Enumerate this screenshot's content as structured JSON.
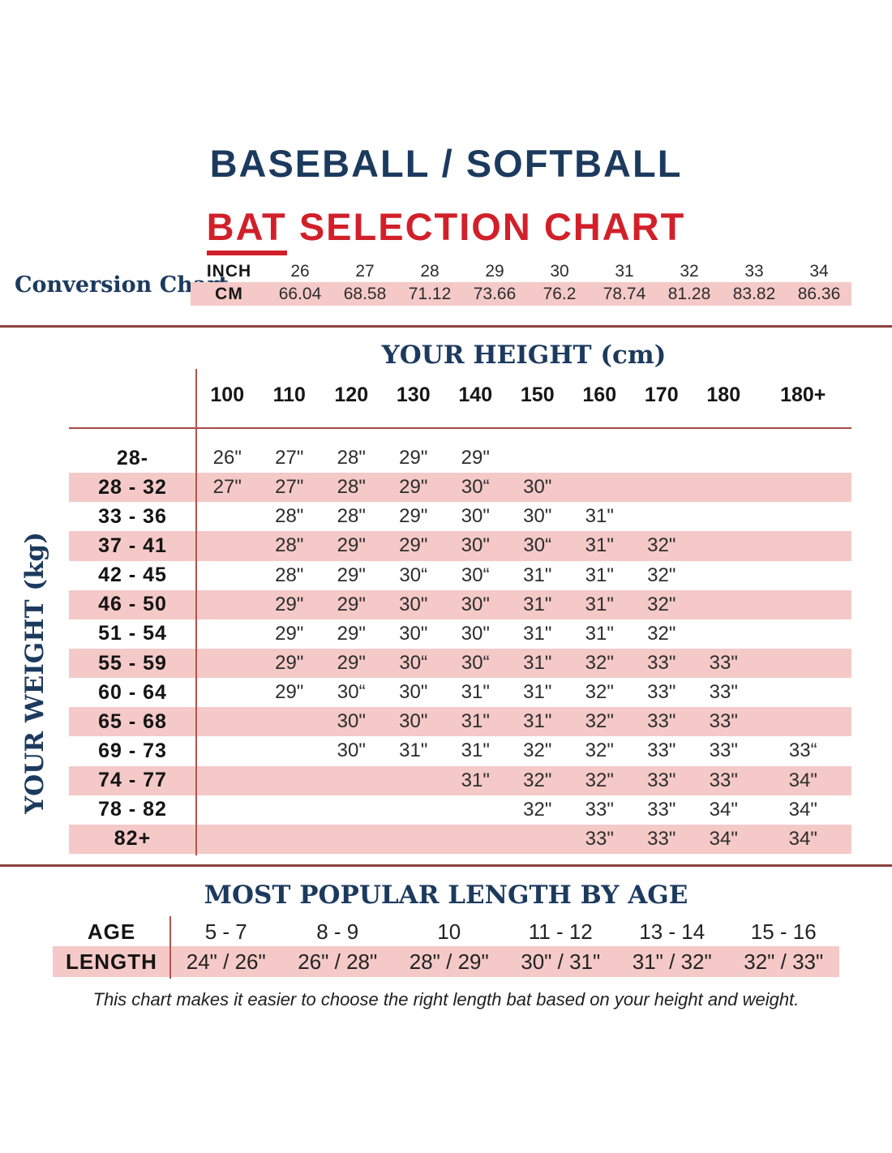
{
  "page": {
    "title_line1": "BASEBALL / SOFTBALL",
    "title_line2_word": "BAT",
    "title_line2_rest": " SELECTION CHART",
    "footer_note": "This chart makes it easier to choose the right length bat based on your height and weight."
  },
  "colors": {
    "navy": "#1c3a5e",
    "red": "#d1202a",
    "pink": "#f4c9c7",
    "rule_red": "#b25350",
    "divider_maroon": "#8e4040"
  },
  "conversion_chart": {
    "label": "Conversion Chart",
    "inch_label": "INCH",
    "cm_label": "CM",
    "inches": [
      "26",
      "27",
      "28",
      "29",
      "30",
      "31",
      "32",
      "33",
      "34"
    ],
    "cms": [
      "66.04",
      "68.58",
      "71.12",
      "73.66",
      "76.2",
      "78.74",
      "81.28",
      "83.82",
      "86.36"
    ]
  },
  "main_table": {
    "col_header_title": "YOUR HEIGHT (cm)",
    "row_header_title": "YOUR WEIGHT (kg)",
    "height_columns": [
      "100",
      "110",
      "120",
      "130",
      "140",
      "150",
      "160",
      "170",
      "180",
      "180+"
    ],
    "rows": [
      {
        "label": "28-",
        "cells": [
          "26\"",
          "27\"",
          "28\"",
          "29\"",
          "29\"",
          "",
          "",
          "",
          "",
          ""
        ]
      },
      {
        "label": "28 - 32",
        "cells": [
          "27\"",
          "27\"",
          "28\"",
          "29\"",
          "30“",
          "30\"",
          "",
          "",
          "",
          ""
        ]
      },
      {
        "label": "33 - 36",
        "cells": [
          "",
          "28\"",
          "28\"",
          "29\"",
          "30\"",
          "30\"",
          "31\"",
          "",
          "",
          ""
        ]
      },
      {
        "label": "37 - 41",
        "cells": [
          "",
          "28\"",
          "29\"",
          "29\"",
          "30\"",
          "30“",
          "31\"",
          "32\"",
          "",
          ""
        ]
      },
      {
        "label": "42 - 45",
        "cells": [
          "",
          "28\"",
          "29\"",
          "30“",
          "30“",
          "31\"",
          "31\"",
          "32\"",
          "",
          ""
        ]
      },
      {
        "label": "46 - 50",
        "cells": [
          "",
          "29\"",
          "29\"",
          "30\"",
          "30\"",
          "31\"",
          "31\"",
          "32\"",
          "",
          ""
        ]
      },
      {
        "label": "51 - 54",
        "cells": [
          "",
          "29\"",
          "29\"",
          "30\"",
          "30\"",
          "31\"",
          "31\"",
          "32\"",
          "",
          ""
        ]
      },
      {
        "label": "55 - 59",
        "cells": [
          "",
          "29\"",
          "29\"",
          "30“",
          "30“",
          "31\"",
          "32\"",
          "33\"",
          "33\"",
          ""
        ]
      },
      {
        "label": "60 - 64",
        "cells": [
          "",
          "29\"",
          "30“",
          "30\"",
          "31\"",
          "31\"",
          "32\"",
          "33\"",
          "33\"",
          ""
        ]
      },
      {
        "label": "65 - 68",
        "cells": [
          "",
          "",
          "30\"",
          "30\"",
          "31\"",
          "31\"",
          "32\"",
          "33\"",
          "33\"",
          ""
        ]
      },
      {
        "label": "69 - 73",
        "cells": [
          "",
          "",
          "30\"",
          "31\"",
          "31\"",
          "32\"",
          "32\"",
          "33\"",
          "33\"",
          "33“"
        ]
      },
      {
        "label": "74 - 77",
        "cells": [
          "",
          "",
          "",
          "",
          "31\"",
          "32\"",
          "32\"",
          "33\"",
          "33\"",
          "34\""
        ]
      },
      {
        "label": "78 - 82",
        "cells": [
          "",
          "",
          "",
          "",
          "",
          "32\"",
          "33\"",
          "33\"",
          "34\"",
          "34\""
        ]
      },
      {
        "label": "82+",
        "cells": [
          "",
          "",
          "",
          "",
          "",
          "",
          "33\"",
          "33\"",
          "34\"",
          "34\""
        ]
      }
    ]
  },
  "age_table": {
    "title": "MOST POPULAR LENGTH BY AGE",
    "age_label": "AGE",
    "length_label": "LENGTH",
    "ages": [
      "5 - 7",
      "8 - 9",
      "10",
      "11 - 12",
      "13 - 14",
      "15 - 16"
    ],
    "lengths": [
      "24\" / 26\"",
      "26\" / 28\"",
      "28\" / 29\"",
      "30\" / 31\"",
      "31\" / 32\"",
      "32\" / 33\""
    ]
  },
  "chart_data": [
    {
      "type": "table",
      "title": "Conversion Chart",
      "columns": [
        "INCH",
        "CM"
      ],
      "rows": [
        {
          "inch": 26,
          "cm": 66.04
        },
        {
          "inch": 27,
          "cm": 68.58
        },
        {
          "inch": 28,
          "cm": 71.12
        },
        {
          "inch": 29,
          "cm": 73.66
        },
        {
          "inch": 30,
          "cm": 76.2
        },
        {
          "inch": 31,
          "cm": 78.74
        },
        {
          "inch": 32,
          "cm": 81.28
        },
        {
          "inch": 33,
          "cm": 83.82
        },
        {
          "inch": 34,
          "cm": 86.36
        }
      ]
    },
    {
      "type": "table",
      "title": "BASEBALL / SOFTBALL BAT SELECTION CHART",
      "xlabel": "YOUR HEIGHT (cm)",
      "ylabel": "YOUR WEIGHT (kg)",
      "columns": [
        "100",
        "110",
        "120",
        "130",
        "140",
        "150",
        "160",
        "170",
        "180",
        "180+"
      ],
      "rows": [
        {
          "weight_kg": "28-",
          "bat_length_in": [
            26,
            27,
            28,
            29,
            29,
            null,
            null,
            null,
            null,
            null
          ]
        },
        {
          "weight_kg": "28 - 32",
          "bat_length_in": [
            27,
            27,
            28,
            29,
            30,
            30,
            null,
            null,
            null,
            null
          ]
        },
        {
          "weight_kg": "33 - 36",
          "bat_length_in": [
            null,
            28,
            28,
            29,
            30,
            30,
            31,
            null,
            null,
            null
          ]
        },
        {
          "weight_kg": "37 - 41",
          "bat_length_in": [
            null,
            28,
            29,
            29,
            30,
            30,
            31,
            32,
            null,
            null
          ]
        },
        {
          "weight_kg": "42 - 45",
          "bat_length_in": [
            null,
            28,
            29,
            30,
            30,
            31,
            31,
            32,
            null,
            null
          ]
        },
        {
          "weight_kg": "46 - 50",
          "bat_length_in": [
            null,
            29,
            29,
            30,
            30,
            31,
            31,
            32,
            null,
            null
          ]
        },
        {
          "weight_kg": "51 - 54",
          "bat_length_in": [
            null,
            29,
            29,
            30,
            30,
            31,
            31,
            32,
            null,
            null
          ]
        },
        {
          "weight_kg": "55 - 59",
          "bat_length_in": [
            null,
            29,
            29,
            30,
            30,
            31,
            32,
            33,
            33,
            null
          ]
        },
        {
          "weight_kg": "60 - 64",
          "bat_length_in": [
            null,
            29,
            30,
            30,
            31,
            31,
            32,
            33,
            33,
            null
          ]
        },
        {
          "weight_kg": "65 - 68",
          "bat_length_in": [
            null,
            null,
            30,
            30,
            31,
            31,
            32,
            33,
            33,
            null
          ]
        },
        {
          "weight_kg": "69 - 73",
          "bat_length_in": [
            null,
            null,
            30,
            31,
            31,
            32,
            32,
            33,
            33,
            33
          ]
        },
        {
          "weight_kg": "74 - 77",
          "bat_length_in": [
            null,
            null,
            null,
            null,
            31,
            32,
            32,
            33,
            33,
            34
          ]
        },
        {
          "weight_kg": "78 - 82",
          "bat_length_in": [
            null,
            null,
            null,
            null,
            null,
            32,
            33,
            33,
            34,
            34
          ]
        },
        {
          "weight_kg": "82+",
          "bat_length_in": [
            null,
            null,
            null,
            null,
            null,
            null,
            33,
            33,
            34,
            34
          ]
        }
      ]
    },
    {
      "type": "table",
      "title": "MOST POPULAR LENGTH BY AGE",
      "columns": [
        "5 - 7",
        "8 - 9",
        "10",
        "11 - 12",
        "13 - 14",
        "15 - 16"
      ],
      "rows": [
        {
          "label": "LENGTH",
          "values": [
            "24\" / 26\"",
            "26\" / 28\"",
            "28\" / 29\"",
            "30\" / 31\"",
            "31\" / 32\"",
            "32\" / 33\""
          ]
        }
      ]
    }
  ]
}
